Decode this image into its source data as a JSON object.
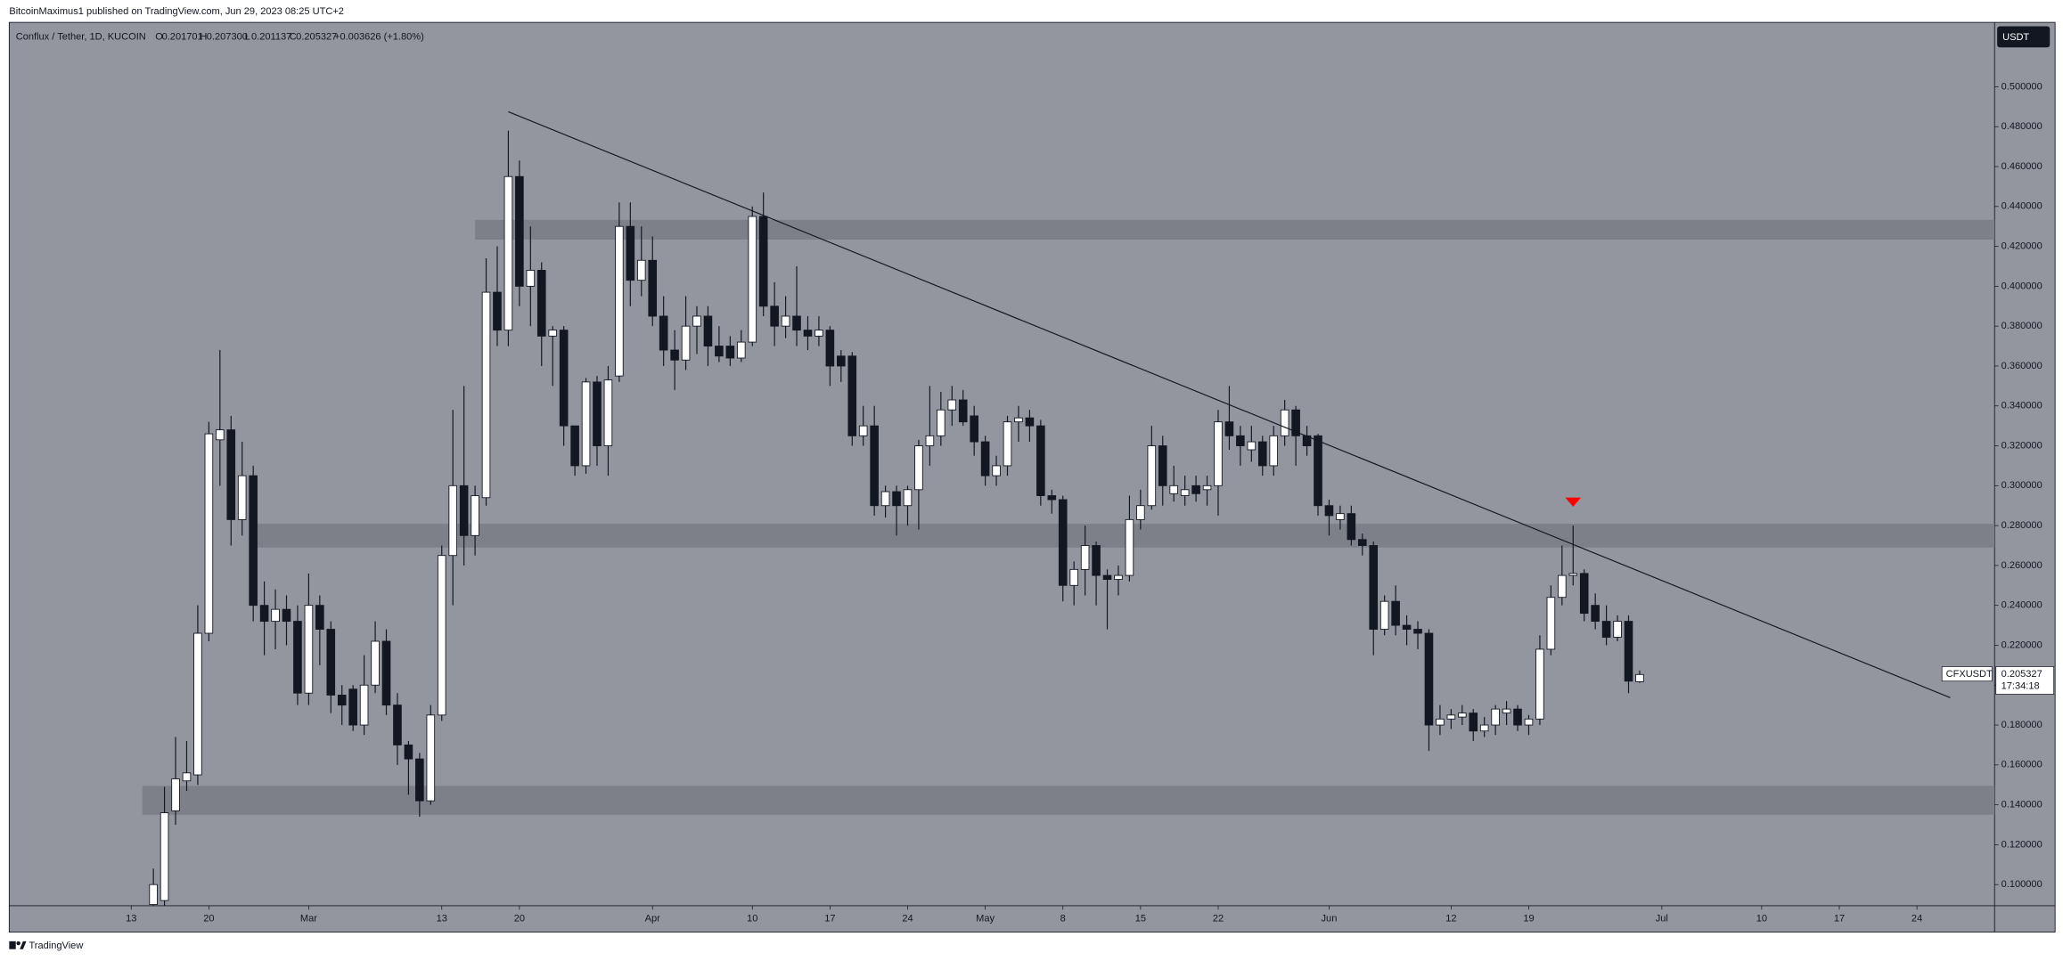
{
  "header": {
    "published": "BitcoinMaximus1 published on TradingView.com, Jun 29, 2023 08:25 UTC+2",
    "footer": "TradingView"
  },
  "chart_data": {
    "type": "candlestick",
    "title": "Conflux / Tether, 1D, KUCOIN",
    "legend": {
      "labels": [
        "O",
        "H",
        "L",
        "C"
      ],
      "values": [
        "0.201701",
        "0.207300",
        "0.201137",
        "0.205327"
      ],
      "change": "+0.003626 (+1.80%)"
    },
    "currency": "USDT",
    "symbol": "CFXUSDT",
    "countdown": "17:34:18",
    "background": "#93969f",
    "up_color": "#ffffff",
    "down_color": "#131722",
    "x": [
      "2023-02-15",
      "2023-02-16",
      "2023-02-17",
      "2023-02-18",
      "2023-02-19",
      "2023-02-20",
      "2023-02-21",
      "2023-02-22",
      "2023-02-23",
      "2023-02-24",
      "2023-02-25",
      "2023-02-26",
      "2023-02-27",
      "2023-02-28",
      "2023-03-01",
      "2023-03-02",
      "2023-03-03",
      "2023-03-04",
      "2023-03-05",
      "2023-03-06",
      "2023-03-07",
      "2023-03-08",
      "2023-03-09",
      "2023-03-10",
      "2023-03-11",
      "2023-03-12",
      "2023-03-13",
      "2023-03-14",
      "2023-03-15",
      "2023-03-16",
      "2023-03-17",
      "2023-03-18",
      "2023-03-19",
      "2023-03-20",
      "2023-03-21",
      "2023-03-22",
      "2023-03-23",
      "2023-03-24",
      "2023-03-25",
      "2023-03-26",
      "2023-03-27",
      "2023-03-28",
      "2023-03-29",
      "2023-03-30",
      "2023-03-31",
      "2023-04-01",
      "2023-04-02",
      "2023-04-03",
      "2023-04-04",
      "2023-04-05",
      "2023-04-06",
      "2023-04-07",
      "2023-04-08",
      "2023-04-09",
      "2023-04-10",
      "2023-04-11",
      "2023-04-12",
      "2023-04-13",
      "2023-04-14",
      "2023-04-15",
      "2023-04-16",
      "2023-04-17",
      "2023-04-18",
      "2023-04-19",
      "2023-04-20",
      "2023-04-21",
      "2023-04-22",
      "2023-04-23",
      "2023-04-24",
      "2023-04-25",
      "2023-04-26",
      "2023-04-27",
      "2023-04-28",
      "2023-04-29",
      "2023-04-30",
      "2023-05-01",
      "2023-05-02",
      "2023-05-03",
      "2023-05-04",
      "2023-05-05",
      "2023-05-06",
      "2023-05-07",
      "2023-05-08",
      "2023-05-09",
      "2023-05-10",
      "2023-05-11",
      "2023-05-12",
      "2023-05-13",
      "2023-05-14",
      "2023-05-15",
      "2023-05-16",
      "2023-05-17",
      "2023-05-18",
      "2023-05-19",
      "2023-05-20",
      "2023-05-21",
      "2023-05-22",
      "2023-05-23",
      "2023-05-24",
      "2023-05-25",
      "2023-05-26",
      "2023-05-27",
      "2023-05-28",
      "2023-05-29",
      "2023-05-30",
      "2023-05-31",
      "2023-06-01",
      "2023-06-02",
      "2023-06-03",
      "2023-06-04",
      "2023-06-05",
      "2023-06-06",
      "2023-06-07",
      "2023-06-08",
      "2023-06-09",
      "2023-06-10",
      "2023-06-11",
      "2023-06-12",
      "2023-06-13",
      "2023-06-14",
      "2023-06-15",
      "2023-06-16",
      "2023-06-17",
      "2023-06-18",
      "2023-06-19",
      "2023-06-20",
      "2023-06-21",
      "2023-06-22",
      "2023-06-23",
      "2023-06-24",
      "2023-06-25",
      "2023-06-26",
      "2023-06-27",
      "2023-06-28",
      "2023-06-29"
    ],
    "open": [
      0.09,
      0.092,
      0.137,
      0.152,
      0.155,
      0.226,
      0.323,
      0.328,
      0.283,
      0.305,
      0.24,
      0.232,
      0.238,
      0.232,
      0.196,
      0.24,
      0.228,
      0.195,
      0.198,
      0.18,
      0.2,
      0.222,
      0.19,
      0.17,
      0.163,
      0.142,
      0.185,
      0.265,
      0.3,
      0.275,
      0.294,
      0.397,
      0.378,
      0.455,
      0.4,
      0.408,
      0.375,
      0.378,
      0.33,
      0.31,
      0.352,
      0.32,
      0.355,
      0.43,
      0.403,
      0.413,
      0.385,
      0.368,
      0.363,
      0.38,
      0.385,
      0.37,
      0.37,
      0.364,
      0.372,
      0.435,
      0.39,
      0.38,
      0.385,
      0.378,
      0.375,
      0.378,
      0.365,
      0.365,
      0.325,
      0.33,
      0.29,
      0.297,
      0.29,
      0.298,
      0.32,
      0.325,
      0.338,
      0.343,
      0.335,
      0.322,
      0.305,
      0.31,
      0.332,
      0.334,
      0.33,
      0.295,
      0.293,
      0.25,
      0.258,
      0.27,
      0.255,
      0.253,
      0.255,
      0.283,
      0.29,
      0.32,
      0.296,
      0.295,
      0.3,
      0.298,
      0.3,
      0.332,
      0.325,
      0.318,
      0.322,
      0.31,
      0.325,
      0.338,
      0.325,
      0.325,
      0.29,
      0.283,
      0.286,
      0.273,
      0.27,
      0.228,
      0.242,
      0.23,
      0.228,
      0.226,
      0.18,
      0.183,
      0.184,
      0.186,
      0.177,
      0.18,
      0.186,
      0.188,
      0.18,
      0.183,
      0.218,
      0.244,
      0.255,
      0.256,
      0.24,
      0.232,
      0.224,
      0.232,
      0.201701
    ],
    "high": [
      0.108,
      0.149,
      0.174,
      0.172,
      0.24,
      0.332,
      0.368,
      0.335,
      0.322,
      0.31,
      0.252,
      0.248,
      0.245,
      0.24,
      0.256,
      0.245,
      0.232,
      0.2,
      0.2,
      0.215,
      0.232,
      0.228,
      0.196,
      0.172,
      0.166,
      0.19,
      0.27,
      0.338,
      0.35,
      0.3,
      0.414,
      0.42,
      0.478,
      0.463,
      0.43,
      0.412,
      0.38,
      0.38,
      0.33,
      0.354,
      0.355,
      0.36,
      0.442,
      0.442,
      0.43,
      0.425,
      0.395,
      0.378,
      0.395,
      0.39,
      0.39,
      0.38,
      0.375,
      0.378,
      0.44,
      0.447,
      0.402,
      0.395,
      0.41,
      0.385,
      0.385,
      0.38,
      0.368,
      0.367,
      0.34,
      0.34,
      0.3,
      0.3,
      0.3,
      0.323,
      0.35,
      0.347,
      0.35,
      0.348,
      0.34,
      0.325,
      0.315,
      0.335,
      0.34,
      0.338,
      0.333,
      0.298,
      0.295,
      0.262,
      0.28,
      0.272,
      0.258,
      0.26,
      0.295,
      0.298,
      0.33,
      0.325,
      0.31,
      0.305,
      0.305,
      0.305,
      0.338,
      0.35,
      0.33,
      0.33,
      0.325,
      0.33,
      0.343,
      0.34,
      0.33,
      0.326,
      0.293,
      0.29,
      0.29,
      0.276,
      0.272,
      0.245,
      0.25,
      0.235,
      0.232,
      0.228,
      0.19,
      0.188,
      0.19,
      0.188,
      0.184,
      0.19,
      0.192,
      0.19,
      0.185,
      0.225,
      0.25,
      0.27,
      0.28,
      0.258,
      0.246,
      0.24,
      0.235,
      0.235,
      0.2073
    ],
    "low": [
      0.085,
      0.088,
      0.13,
      0.147,
      0.15,
      0.222,
      0.3,
      0.27,
      0.275,
      0.232,
      0.215,
      0.218,
      0.22,
      0.19,
      0.19,
      0.21,
      0.186,
      0.18,
      0.177,
      0.175,
      0.196,
      0.185,
      0.16,
      0.145,
      0.134,
      0.14,
      0.182,
      0.24,
      0.26,
      0.265,
      0.29,
      0.37,
      0.37,
      0.39,
      0.38,
      0.36,
      0.35,
      0.32,
      0.305,
      0.306,
      0.31,
      0.305,
      0.352,
      0.39,
      0.395,
      0.38,
      0.36,
      0.348,
      0.358,
      0.366,
      0.36,
      0.362,
      0.36,
      0.362,
      0.37,
      0.385,
      0.37,
      0.374,
      0.37,
      0.368,
      0.37,
      0.35,
      0.352,
      0.32,
      0.32,
      0.285,
      0.284,
      0.275,
      0.28,
      0.278,
      0.31,
      0.32,
      0.33,
      0.33,
      0.315,
      0.3,
      0.3,
      0.305,
      0.322,
      0.322,
      0.29,
      0.286,
      0.242,
      0.24,
      0.245,
      0.24,
      0.228,
      0.245,
      0.252,
      0.278,
      0.288,
      0.29,
      0.292,
      0.29,
      0.292,
      0.29,
      0.285,
      0.318,
      0.31,
      0.312,
      0.305,
      0.305,
      0.32,
      0.31,
      0.315,
      0.285,
      0.275,
      0.278,
      0.27,
      0.265,
      0.215,
      0.225,
      0.225,
      0.22,
      0.218,
      0.167,
      0.175,
      0.178,
      0.18,
      0.172,
      0.174,
      0.175,
      0.18,
      0.177,
      0.175,
      0.18,
      0.215,
      0.24,
      0.25,
      0.232,
      0.228,
      0.22,
      0.222,
      0.196,
      0.201137
    ],
    "close": [
      0.1,
      0.136,
      0.153,
      0.156,
      0.226,
      0.326,
      0.328,
      0.283,
      0.305,
      0.24,
      0.232,
      0.238,
      0.232,
      0.196,
      0.24,
      0.228,
      0.195,
      0.19,
      0.18,
      0.2,
      0.222,
      0.19,
      0.17,
      0.163,
      0.142,
      0.185,
      0.265,
      0.3,
      0.275,
      0.295,
      0.397,
      0.378,
      0.455,
      0.4,
      0.408,
      0.375,
      0.378,
      0.33,
      0.31,
      0.352,
      0.32,
      0.353,
      0.43,
      0.403,
      0.413,
      0.385,
      0.368,
      0.363,
      0.38,
      0.385,
      0.37,
      0.365,
      0.364,
      0.372,
      0.435,
      0.39,
      0.38,
      0.385,
      0.378,
      0.375,
      0.378,
      0.36,
      0.36,
      0.325,
      0.33,
      0.29,
      0.297,
      0.29,
      0.298,
      0.32,
      0.325,
      0.338,
      0.343,
      0.332,
      0.322,
      0.305,
      0.31,
      0.332,
      0.334,
      0.33,
      0.295,
      0.293,
      0.25,
      0.258,
      0.27,
      0.255,
      0.253,
      0.255,
      0.283,
      0.29,
      0.32,
      0.3,
      0.3,
      0.298,
      0.296,
      0.3,
      0.332,
      0.325,
      0.32,
      0.322,
      0.31,
      0.325,
      0.338,
      0.325,
      0.32,
      0.29,
      0.285,
      0.286,
      0.273,
      0.27,
      0.228,
      0.242,
      0.23,
      0.228,
      0.226,
      0.18,
      0.183,
      0.185,
      0.186,
      0.177,
      0.18,
      0.188,
      0.188,
      0.18,
      0.183,
      0.218,
      0.244,
      0.255,
      0.256,
      0.236,
      0.232,
      0.224,
      0.232,
      0.202,
      0.205327
    ],
    "trendline": {
      "x": [
        "2023-03-19",
        "2023-07-27"
      ],
      "y": [
        0.4875,
        0.1937
      ],
      "color": "#131722"
    },
    "zones": [
      {
        "x": "2023-03-16",
        "y": [
          0.4234,
          0.4333
        ]
      },
      {
        "x": "2023-02-24",
        "y": [
          0.269,
          0.2809
        ]
      },
      {
        "x": "2023-02-14",
        "y": [
          0.135,
          0.1495
        ]
      }
    ],
    "zone_color": "#7d8089",
    "marker": {
      "x": "2023-06-23",
      "y": 0.2914,
      "color": "#ff0000"
    },
    "xlim": [
      "2023-02-02",
      "2023-07-31"
    ],
    "xticks": [
      {
        "value": "2023-02-13",
        "label": "13"
      },
      {
        "value": "2023-02-20",
        "label": "20"
      },
      {
        "value": "2023-03-01",
        "label": "Mar"
      },
      {
        "value": "2023-03-13",
        "label": "13"
      },
      {
        "value": "2023-03-20",
        "label": "20"
      },
      {
        "value": "2023-04-01",
        "label": "Apr"
      },
      {
        "value": "2023-04-10",
        "label": "10"
      },
      {
        "value": "2023-04-17",
        "label": "17"
      },
      {
        "value": "2023-04-24",
        "label": "24"
      },
      {
        "value": "2023-05-01",
        "label": "May"
      },
      {
        "value": "2023-05-08",
        "label": "8"
      },
      {
        "value": "2023-05-15",
        "label": "15"
      },
      {
        "value": "2023-05-22",
        "label": "22"
      },
      {
        "value": "2023-06-01",
        "label": "Jun"
      },
      {
        "value": "2023-06-12",
        "label": "12"
      },
      {
        "value": "2023-06-19",
        "label": "19"
      },
      {
        "value": "2023-07-01",
        "label": "Jul"
      },
      {
        "value": "2023-07-10",
        "label": "10"
      },
      {
        "value": "2023-07-17",
        "label": "17"
      },
      {
        "value": "2023-07-24",
        "label": "24"
      }
    ],
    "ylim": [
      0.0894,
      0.5323
    ],
    "yticks": [
      {
        "value": 0.1,
        "label": "0.100000"
      },
      {
        "value": 0.12,
        "label": "0.120000"
      },
      {
        "value": 0.14,
        "label": "0.140000"
      },
      {
        "value": 0.16,
        "label": "0.160000"
      },
      {
        "value": 0.18,
        "label": "0.180000"
      },
      {
        "value": 0.2,
        "label": "0.200000"
      },
      {
        "value": 0.22,
        "label": "0.220000"
      },
      {
        "value": 0.24,
        "label": "0.240000"
      },
      {
        "value": 0.26,
        "label": "0.260000"
      },
      {
        "value": 0.28,
        "label": "0.280000"
      },
      {
        "value": 0.3,
        "label": "0.300000"
      },
      {
        "value": 0.32,
        "label": "0.320000"
      },
      {
        "value": 0.34,
        "label": "0.340000"
      },
      {
        "value": 0.36,
        "label": "0.360000"
      },
      {
        "value": 0.38,
        "label": "0.380000"
      },
      {
        "value": 0.4,
        "label": "0.400000"
      },
      {
        "value": 0.42,
        "label": "0.420000"
      },
      {
        "value": 0.44,
        "label": "0.440000"
      },
      {
        "value": 0.46,
        "label": "0.460000"
      },
      {
        "value": 0.48,
        "label": "0.480000"
      },
      {
        "value": 0.5,
        "label": "0.500000"
      }
    ],
    "grid": false
  }
}
